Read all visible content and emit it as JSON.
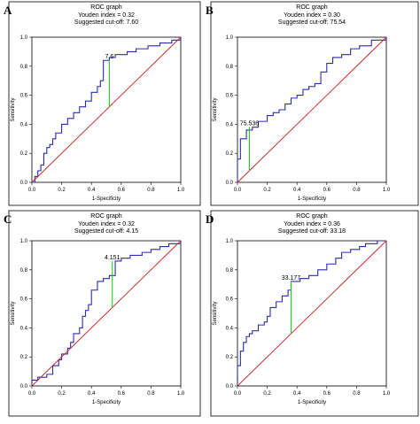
{
  "chart_data": [
    {
      "type": "line",
      "panel": "A",
      "title": "ROC graph",
      "subtitle_lines": [
        "Youden index = 0.32",
        "Suggested cut-off: 7.60"
      ],
      "xlabel": "1-Specificity",
      "ylabel": "Sensitivity",
      "xlim": [
        0,
        1
      ],
      "ylim": [
        0,
        1
      ],
      "x_ticks": [
        "0.0",
        "0.2",
        "0.4",
        "0.6",
        "0.8",
        "1.0"
      ],
      "y_ticks": [
        "0.0",
        "0.2",
        "0.4",
        "0.6",
        "0.8",
        "1.0"
      ],
      "grid": false,
      "series": [
        {
          "color": "#2b2bb0",
          "x": [
            0,
            0.02,
            0.02,
            0.04,
            0.04,
            0.06,
            0.06,
            0.08,
            0.08,
            0.1,
            0.1,
            0.12,
            0.12,
            0.14,
            0.14,
            0.16,
            0.16,
            0.2,
            0.2,
            0.24,
            0.24,
            0.28,
            0.28,
            0.32,
            0.32,
            0.36,
            0.36,
            0.4,
            0.4,
            0.44,
            0.44,
            0.46,
            0.46,
            0.48,
            0.48,
            0.52,
            0.52,
            0.56,
            0.56,
            0.64,
            0.64,
            0.7,
            0.7,
            0.78,
            0.78,
            0.86,
            0.86,
            0.94,
            0.94,
            1.0,
            1.0
          ],
          "y": [
            0,
            0,
            0.04,
            0.04,
            0.08,
            0.08,
            0.12,
            0.12,
            0.2,
            0.2,
            0.24,
            0.24,
            0.26,
            0.26,
            0.3,
            0.3,
            0.34,
            0.34,
            0.4,
            0.4,
            0.44,
            0.44,
            0.48,
            0.48,
            0.52,
            0.52,
            0.56,
            0.56,
            0.62,
            0.62,
            0.66,
            0.66,
            0.7,
            0.7,
            0.84,
            0.84,
            0.86,
            0.86,
            0.88,
            0.88,
            0.9,
            0.9,
            0.92,
            0.92,
            0.94,
            0.94,
            0.96,
            0.96,
            0.98,
            0.98,
            1.0
          ]
        },
        {
          "color": "#cc2222",
          "x": [
            0,
            1
          ],
          "y": [
            0,
            1
          ]
        }
      ],
      "cutoff": {
        "label": "7.6",
        "x": 0.52,
        "y_low": 0.52,
        "y_high": 0.84,
        "color": "#22cc22"
      }
    },
    {
      "type": "line",
      "panel": "B",
      "title": "ROC graph",
      "subtitle_lines": [
        "Youden index = 0.30",
        "Suggested cut-off: 75.54"
      ],
      "xlabel": "1-Specificity",
      "ylabel": "Sensitivity",
      "xlim": [
        0,
        1
      ],
      "ylim": [
        0,
        1
      ],
      "x_ticks": [
        "0.0",
        "0.2",
        "0.4",
        "0.6",
        "0.8",
        "1.0"
      ],
      "y_ticks": [
        "0.0",
        "0.2",
        "0.4",
        "0.6",
        "0.8",
        "1.0"
      ],
      "grid": false,
      "series": [
        {
          "color": "#2b2bb0",
          "x": [
            0,
            0,
            0.02,
            0.02,
            0.06,
            0.06,
            0.1,
            0.1,
            0.14,
            0.14,
            0.2,
            0.2,
            0.24,
            0.24,
            0.28,
            0.28,
            0.32,
            0.32,
            0.36,
            0.36,
            0.4,
            0.4,
            0.44,
            0.44,
            0.48,
            0.48,
            0.52,
            0.52,
            0.56,
            0.56,
            0.6,
            0.6,
            0.64,
            0.64,
            0.7,
            0.7,
            0.76,
            0.76,
            0.82,
            0.82,
            0.9,
            0.9,
            1.0,
            1.0
          ],
          "y": [
            0,
            0.16,
            0.16,
            0.3,
            0.3,
            0.36,
            0.36,
            0.38,
            0.38,
            0.42,
            0.42,
            0.46,
            0.46,
            0.48,
            0.48,
            0.5,
            0.5,
            0.54,
            0.54,
            0.58,
            0.58,
            0.6,
            0.6,
            0.64,
            0.64,
            0.66,
            0.66,
            0.68,
            0.68,
            0.76,
            0.76,
            0.82,
            0.82,
            0.86,
            0.86,
            0.88,
            0.88,
            0.92,
            0.92,
            0.94,
            0.94,
            0.98,
            0.98,
            1.0
          ]
        },
        {
          "color": "#cc2222",
          "x": [
            0,
            1
          ],
          "y": [
            0,
            1
          ]
        }
      ],
      "cutoff": {
        "label": "75.536",
        "x": 0.08,
        "y_low": 0.08,
        "y_high": 0.38,
        "color": "#22cc22"
      }
    },
    {
      "type": "line",
      "panel": "C",
      "title": "ROC graph",
      "subtitle_lines": [
        "Youden index = 0.32",
        "Suggested cut-off: 4.15"
      ],
      "xlabel": "1-Specificity",
      "ylabel": "Sensitivity",
      "xlim": [
        0,
        1
      ],
      "ylim": [
        0,
        1
      ],
      "x_ticks": [
        "0.0",
        "0.2",
        "0.4",
        "0.6",
        "0.8",
        "1.0"
      ],
      "y_ticks": [
        "0.0",
        "0.2",
        "0.4",
        "0.6",
        "0.8",
        "1.0"
      ],
      "grid": false,
      "series": [
        {
          "color": "#2b2bb0",
          "x": [
            0,
            0,
            0.04,
            0.04,
            0.1,
            0.1,
            0.14,
            0.14,
            0.18,
            0.18,
            0.2,
            0.2,
            0.24,
            0.24,
            0.26,
            0.26,
            0.28,
            0.28,
            0.32,
            0.32,
            0.34,
            0.34,
            0.36,
            0.36,
            0.38,
            0.38,
            0.4,
            0.4,
            0.44,
            0.44,
            0.48,
            0.48,
            0.52,
            0.52,
            0.56,
            0.56,
            0.6,
            0.6,
            0.66,
            0.66,
            0.74,
            0.74,
            0.8,
            0.8,
            0.86,
            0.86,
            0.92,
            0.92,
            1.0,
            1.0
          ],
          "y": [
            0,
            0.04,
            0.04,
            0.06,
            0.06,
            0.08,
            0.08,
            0.14,
            0.14,
            0.18,
            0.18,
            0.22,
            0.22,
            0.26,
            0.26,
            0.3,
            0.3,
            0.36,
            0.36,
            0.4,
            0.4,
            0.48,
            0.48,
            0.52,
            0.52,
            0.56,
            0.56,
            0.66,
            0.66,
            0.72,
            0.72,
            0.74,
            0.74,
            0.76,
            0.76,
            0.86,
            0.86,
            0.88,
            0.88,
            0.9,
            0.9,
            0.92,
            0.92,
            0.94,
            0.94,
            0.96,
            0.96,
            0.98,
            0.98,
            1.0
          ]
        },
        {
          "color": "#cc2222",
          "x": [
            0,
            1
          ],
          "y": [
            0,
            1
          ]
        }
      ],
      "cutoff": {
        "label": "4.151",
        "x": 0.54,
        "y_low": 0.54,
        "y_high": 0.86,
        "color": "#22cc22"
      }
    },
    {
      "type": "line",
      "panel": "D",
      "title": "ROC graph",
      "subtitle_lines": [
        "Youden index = 0.36",
        "Suggested cut-off: 33.18"
      ],
      "xlabel": "1-Specificity",
      "ylabel": "Sensitivity",
      "xlim": [
        0,
        1
      ],
      "ylim": [
        0,
        1
      ],
      "x_ticks": [
        "0.0",
        "0.2",
        "0.4",
        "0.6",
        "0.8",
        "1.0"
      ],
      "y_ticks": [
        "0.0",
        "0.2",
        "0.4",
        "0.6",
        "0.8",
        "1.0"
      ],
      "grid": false,
      "series": [
        {
          "color": "#2b2bb0",
          "x": [
            0,
            0,
            0.02,
            0.02,
            0.04,
            0.04,
            0.06,
            0.06,
            0.08,
            0.08,
            0.1,
            0.1,
            0.14,
            0.14,
            0.18,
            0.18,
            0.2,
            0.2,
            0.22,
            0.22,
            0.26,
            0.26,
            0.3,
            0.3,
            0.34,
            0.34,
            0.36,
            0.36,
            0.42,
            0.42,
            0.48,
            0.48,
            0.54,
            0.54,
            0.6,
            0.6,
            0.66,
            0.66,
            0.7,
            0.7,
            0.76,
            0.76,
            0.82,
            0.82,
            0.86,
            0.86,
            0.94,
            0.94,
            1.0,
            1.0
          ],
          "y": [
            0,
            0.14,
            0.14,
            0.24,
            0.24,
            0.3,
            0.3,
            0.34,
            0.34,
            0.36,
            0.36,
            0.38,
            0.38,
            0.42,
            0.42,
            0.44,
            0.44,
            0.48,
            0.48,
            0.54,
            0.54,
            0.58,
            0.58,
            0.62,
            0.62,
            0.66,
            0.66,
            0.72,
            0.72,
            0.74,
            0.74,
            0.76,
            0.76,
            0.8,
            0.8,
            0.84,
            0.84,
            0.88,
            0.88,
            0.92,
            0.92,
            0.94,
            0.94,
            0.96,
            0.96,
            0.98,
            0.98,
            1.0,
            1.0,
            1.0
          ]
        },
        {
          "color": "#cc2222",
          "x": [
            0,
            1
          ],
          "y": [
            0,
            1
          ]
        }
      ],
      "cutoff": {
        "label": "33.177",
        "x": 0.36,
        "y_low": 0.36,
        "y_high": 0.72,
        "color": "#22cc22"
      }
    }
  ]
}
